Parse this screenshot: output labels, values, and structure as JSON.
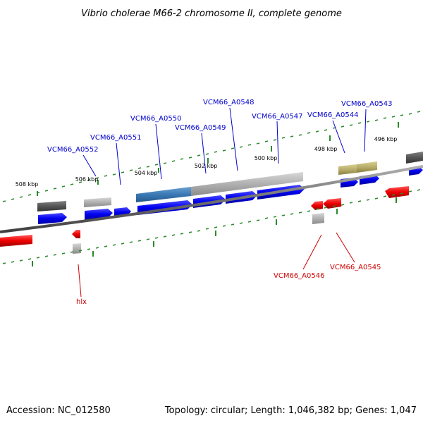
{
  "title": "Vibrio cholerae M66-2 chromosome II, complete genome",
  "footer": {
    "accession": "Accession: NC_012580",
    "topology": "Topology: circular; Length: 1,046,382 bp; Genes: 1,047"
  },
  "colors": {
    "forward_gene": "#0000ee",
    "reverse_gene": "#ee0000",
    "forward_label": "#0000cc",
    "reverse_label": "#cc0000",
    "tick": "#2a8a2a",
    "backbone": "#808080",
    "feature_grey": "#a0a0a0",
    "feature_dark": "#555555",
    "feature_blue": "#3a78b5",
    "feature_olive": "#b8ad6a"
  },
  "kbp_labels": [
    "508 kbp",
    "506 kbp",
    "504 kbp",
    "502 kbp",
    "500 kbp",
    "498 kbp",
    "496 kbp"
  ],
  "forward_labels": [
    "VCM66_A0552",
    "VCM66_A0551",
    "VCM66_A0550",
    "VCM66_A0549",
    "VCM66_A0548",
    "VCM66_A0547",
    "VCM66_A0544",
    "VCM66_A0543"
  ],
  "reverse_labels": [
    "VCM66_A0546",
    "VCM66_A0545",
    "hlx"
  ]
}
